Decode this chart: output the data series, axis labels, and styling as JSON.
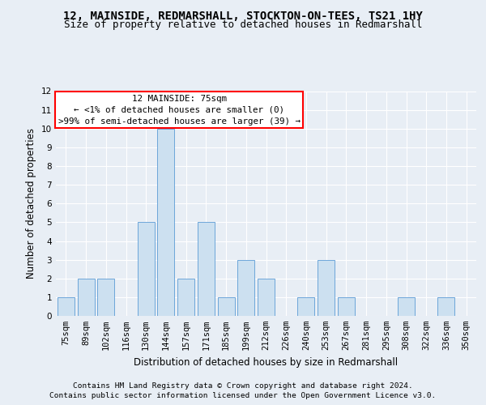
{
  "title_line1": "12, MAINSIDE, REDMARSHALL, STOCKTON-ON-TEES, TS21 1HY",
  "title_line2": "Size of property relative to detached houses in Redmarshall",
  "xlabel": "Distribution of detached houses by size in Redmarshall",
  "ylabel": "Number of detached properties",
  "categories": [
    "75sqm",
    "89sqm",
    "102sqm",
    "116sqm",
    "130sqm",
    "144sqm",
    "157sqm",
    "171sqm",
    "185sqm",
    "199sqm",
    "212sqm",
    "226sqm",
    "240sqm",
    "253sqm",
    "267sqm",
    "281sqm",
    "295sqm",
    "308sqm",
    "322sqm",
    "336sqm",
    "350sqm"
  ],
  "values": [
    1,
    2,
    2,
    0,
    5,
    10,
    2,
    5,
    1,
    3,
    2,
    0,
    1,
    3,
    1,
    0,
    0,
    1,
    0,
    1,
    0
  ],
  "bar_color": "#cce0f0",
  "bar_edge_color": "#5b9bd5",
  "annotation_line1": "12 MAINSIDE: 75sqm",
  "annotation_line2": "← <1% of detached houses are smaller (0)",
  "annotation_line3": ">99% of semi-detached houses are larger (39) →",
  "annotation_box_color": "#ff0000",
  "ylim": [
    0,
    12
  ],
  "yticks": [
    0,
    1,
    2,
    3,
    4,
    5,
    6,
    7,
    8,
    9,
    10,
    11,
    12
  ],
  "footer_line1": "Contains HM Land Registry data © Crown copyright and database right 2024.",
  "footer_line2": "Contains public sector information licensed under the Open Government Licence v3.0.",
  "background_color": "#e8eef5",
  "plot_background_color": "#e8eef5",
  "grid_color": "#ffffff",
  "title_fontsize": 10,
  "subtitle_fontsize": 9,
  "axis_label_fontsize": 8.5,
  "tick_fontsize": 7.5,
  "annotation_fontsize": 7.8,
  "footer_fontsize": 6.8
}
